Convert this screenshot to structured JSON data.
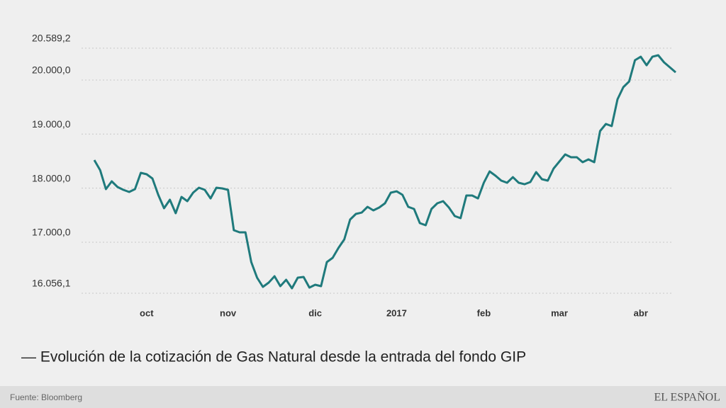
{
  "chart_data": {
    "type": "line",
    "title": "— Evolución de la cotización de Gas Natural desde la entrada del fondo GIP",
    "source": "Fuente: Bloomberg",
    "brand": "EL ESPAÑOL",
    "categories": [
      null,
      null,
      null,
      null,
      null,
      null,
      null,
      null,
      null,
      "oct",
      null,
      null,
      null,
      null,
      null,
      null,
      null,
      null,
      null,
      null,
      null,
      null,
      null,
      "nov",
      null,
      null,
      null,
      null,
      null,
      null,
      null,
      null,
      null,
      null,
      null,
      null,
      null,
      null,
      "dic",
      null,
      null,
      null,
      null,
      null,
      null,
      null,
      null,
      null,
      null,
      null,
      null,
      null,
      "2017",
      null,
      null,
      null,
      null,
      null,
      null,
      null,
      null,
      null,
      null,
      null,
      null,
      null,
      null,
      "feb",
      null,
      null,
      null,
      null,
      null,
      null,
      null,
      null,
      null,
      null,
      null,
      null,
      "mar",
      null,
      null,
      null,
      null,
      null,
      null,
      null,
      null,
      null,
      null,
      null,
      null,
      null,
      "abr",
      null,
      null,
      null,
      null,
      null,
      null
    ],
    "series": [
      {
        "name": "Gas Natural",
        "color": "#1f7a7c",
        "values": [
          18519,
          18335,
          17982,
          18126,
          18021,
          17969,
          17929,
          17982,
          18283,
          18257,
          18178,
          17877,
          17628,
          17785,
          17536,
          17838,
          17759,
          17916,
          18008,
          17969,
          17811,
          18008,
          17995,
          17969,
          17222,
          17183,
          17183,
          16632,
          16344,
          16174,
          16253,
          16370,
          16187,
          16305,
          16148,
          16344,
          16357,
          16161,
          16213,
          16187,
          16632,
          16711,
          16894,
          17052,
          17418,
          17523,
          17549,
          17654,
          17589,
          17641,
          17720,
          17916,
          17942,
          17877,
          17654,
          17615,
          17353,
          17314,
          17615,
          17720,
          17759,
          17641,
          17484,
          17445,
          17864,
          17864,
          17811,
          18100,
          18309,
          18231,
          18139,
          18100,
          18204,
          18100,
          18073,
          18113,
          18296,
          18165,
          18139,
          18362,
          18493,
          18624,
          18571,
          18571,
          18480,
          18532,
          18480,
          19056,
          19187,
          19148,
          19645,
          19868,
          19973,
          20366,
          20431,
          20274,
          20431,
          20458,
          20327,
          20235,
          20143
        ]
      }
    ],
    "ylim": [
      16056.1,
      20589.2
    ],
    "yticks": [
      {
        "value": 20589.2,
        "label": "20.589,2"
      },
      {
        "value": 20000,
        "label": "20.000,0"
      },
      {
        "value": 19000,
        "label": "19.000,0"
      },
      {
        "value": 18000,
        "label": "18.000,0"
      },
      {
        "value": 17000,
        "label": "17.000,0"
      },
      {
        "value": 16056.1,
        "label": "16.056,1"
      }
    ],
    "grid": true
  }
}
